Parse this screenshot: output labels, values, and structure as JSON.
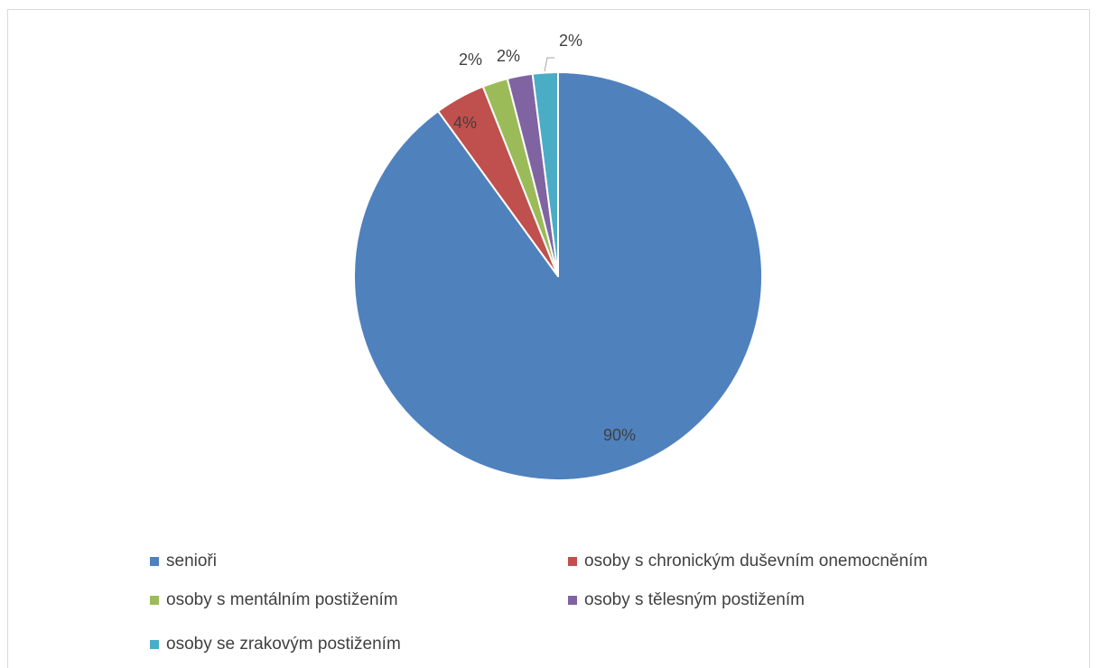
{
  "chart_data": {
    "type": "pie",
    "title": "",
    "categories": [
      "senioři",
      "osoby s chronickým duševním onemocněním",
      "osoby s mentálním postižením",
      "osoby s tělesným postižením",
      "osoby se zrakovým postižením"
    ],
    "values": [
      90,
      4,
      2,
      2,
      2
    ],
    "data_labels": [
      "90%",
      "4%",
      "2%",
      "2%",
      "2%"
    ],
    "colors": [
      "#4f81bd",
      "#c0504d",
      "#9bbb59",
      "#8064a2",
      "#4bacc6"
    ],
    "legend_position": "bottom"
  }
}
